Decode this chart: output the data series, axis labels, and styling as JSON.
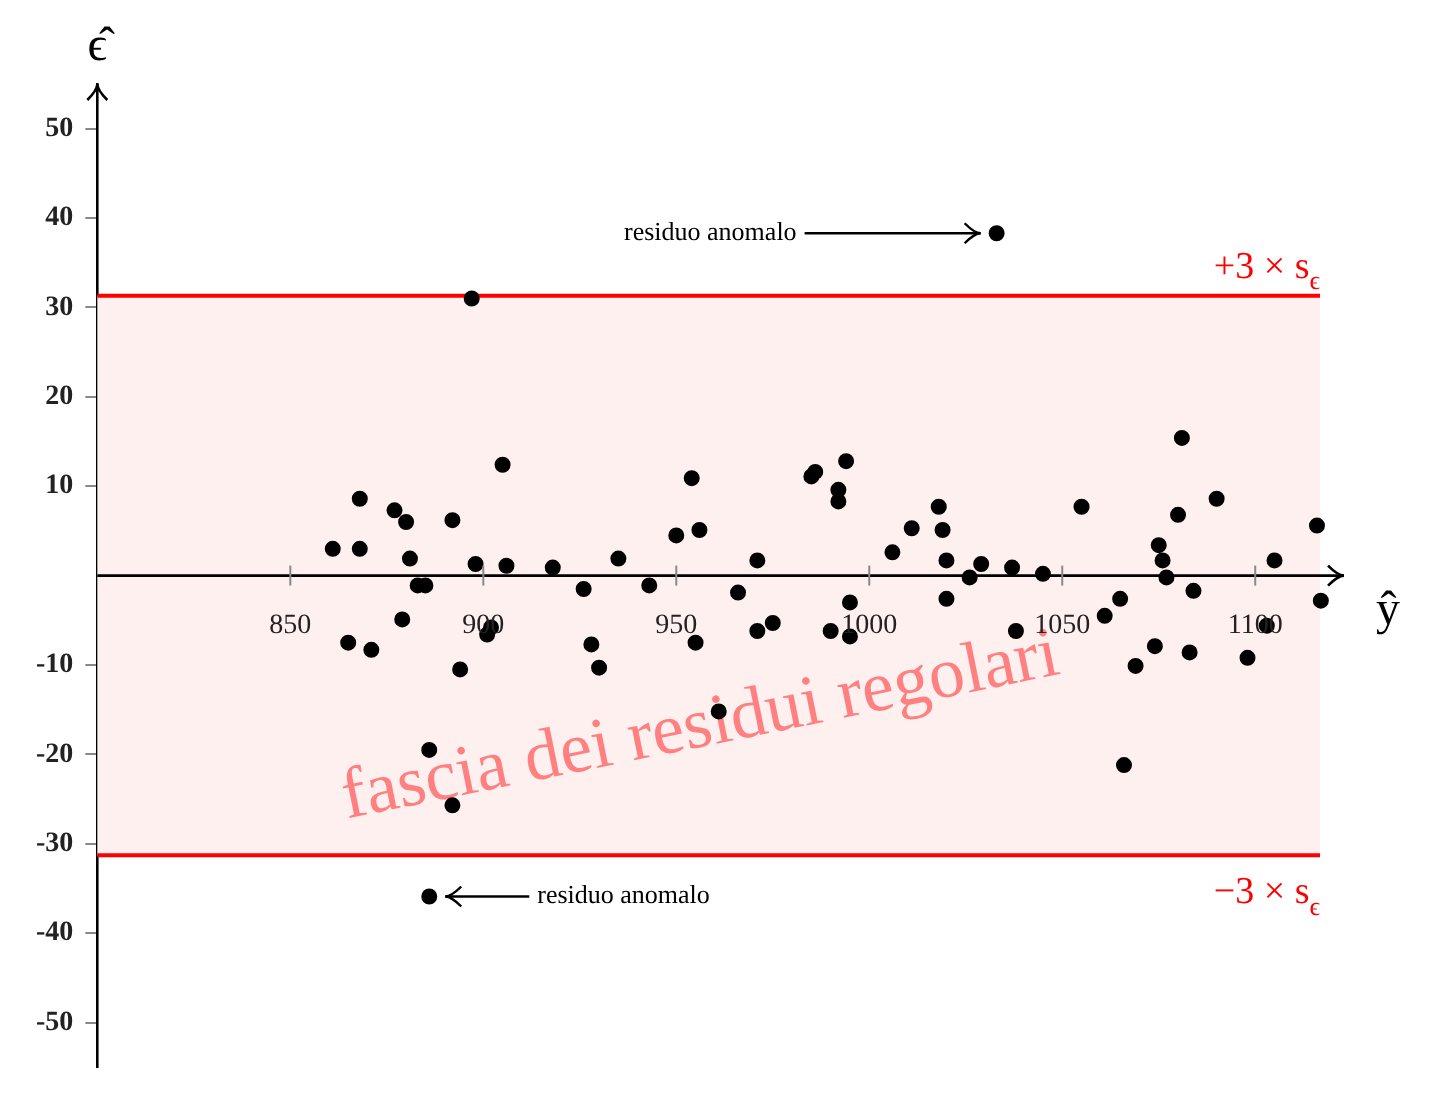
{
  "chart_data": {
    "type": "scatter",
    "xlabel": "ŷ",
    "ylabel": "ϵ̂",
    "xlim": [
      800,
      1123
    ],
    "ylim": [
      -55,
      55
    ],
    "xticks": [
      850,
      900,
      950,
      1000,
      1050,
      1100
    ],
    "yticks": [
      -50,
      -40,
      -30,
      -20,
      -10,
      10,
      20,
      30,
      40,
      50
    ],
    "marker": "circle",
    "legend": false,
    "series": [
      {
        "color": "#000000",
        "x": [
          861,
          868,
          868,
          865,
          871,
          877,
          880,
          881,
          883,
          885,
          879,
          886,
          892,
          892,
          894,
          897,
          898,
          901,
          902,
          905,
          906,
          918,
          926,
          928,
          930,
          935,
          943,
          950,
          954,
          956,
          955,
          961,
          966,
          971,
          971,
          975,
          985,
          986,
          992,
          992,
          994,
          995,
          995,
          990,
          1006,
          1011,
          1018,
          1019,
          1020,
          1020,
          1026,
          1029,
          1033,
          1037,
          1038,
          1045,
          1055,
          1061,
          1065,
          1069,
          1066,
          1074,
          1075,
          1076,
          1077,
          1080,
          1081,
          1084,
          1083,
          1090,
          1098,
          1103,
          1105,
          1116,
          1117,
          886
        ],
        "values": [
          3.0,
          8.6,
          3.0,
          -7.5,
          -8.3,
          7.3,
          6.0,
          1.9,
          -1.1,
          -1.1,
          -4.9,
          -19.5,
          -25.7,
          6.2,
          -10.5,
          31.0,
          1.3,
          -6.6,
          -5.8,
          12.4,
          1.1,
          0.9,
          -1.5,
          -7.7,
          -10.3,
          1.9,
          -1.1,
          4.5,
          10.9,
          5.1,
          -7.5,
          -15.2,
          -1.9,
          1.7,
          -6.2,
          -5.3,
          11.1,
          11.6,
          9.6,
          8.3,
          12.8,
          -3.0,
          -6.8,
          -6.2,
          2.6,
          5.3,
          7.7,
          5.1,
          1.7,
          -2.6,
          -0.2,
          1.3,
          38.3,
          0.9,
          -6.2,
          0.2,
          7.7,
          -4.5,
          -2.6,
          -10.1,
          -21.2,
          -7.9,
          3.4,
          1.7,
          -0.2,
          6.8,
          15.4,
          -1.7,
          -8.6,
          8.6,
          -9.2,
          -5.6,
          1.7,
          5.6,
          -2.8,
          -35.9
        ]
      }
    ],
    "bands": [
      {
        "axis": "y",
        "from": -31.3,
        "to": 31.3,
        "label": "fascia dei residui regolari",
        "color": "#fff0f0"
      }
    ],
    "ref_lines": [
      {
        "axis": "y",
        "value": 31.3,
        "label": "+3 × s$_{ϵ}$",
        "color": "#ff0000"
      },
      {
        "axis": "y",
        "value": -31.3,
        "label": "−3 × s$_{ϵ}$",
        "color": "#ff0000"
      }
    ],
    "annotations": [
      {
        "text": "residuo anomalo",
        "x": 1033,
        "y": 38.3
      },
      "residuo anomalo"
    ]
  }
}
